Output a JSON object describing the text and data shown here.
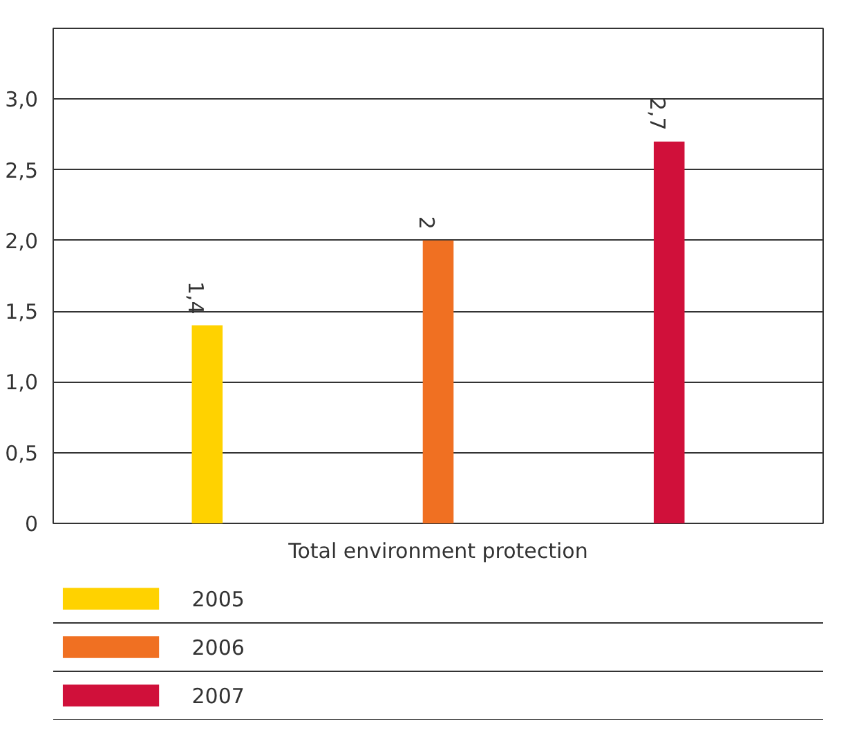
{
  "chart_data": {
    "type": "bar",
    "categories": [
      "Total environment protection"
    ],
    "series": [
      {
        "name": "2005",
        "color": "#ffd200",
        "values": [
          1.4
        ],
        "value_labels": [
          "1,4"
        ]
      },
      {
        "name": "2006",
        "color": "#f07022",
        "values": [
          2
        ],
        "value_labels": [
          "2"
        ]
      },
      {
        "name": "2007",
        "color": "#d0103a",
        "values": [
          2.7
        ],
        "value_labels": [
          "2,7"
        ]
      }
    ],
    "ylim": [
      0,
      3.5
    ],
    "yticks": [
      0,
      {
        "value": 0.5,
        "label": "0,5"
      },
      {
        "value": 1,
        "label": "1,0"
      },
      {
        "value": 1.5,
        "label": "1,5"
      },
      {
        "value": 2,
        "label": "2,0"
      },
      {
        "value": 2.5,
        "label": "2,5"
      },
      {
        "value": 3,
        "label": "3,0"
      }
    ],
    "grid": "y",
    "legend": "bottom"
  }
}
